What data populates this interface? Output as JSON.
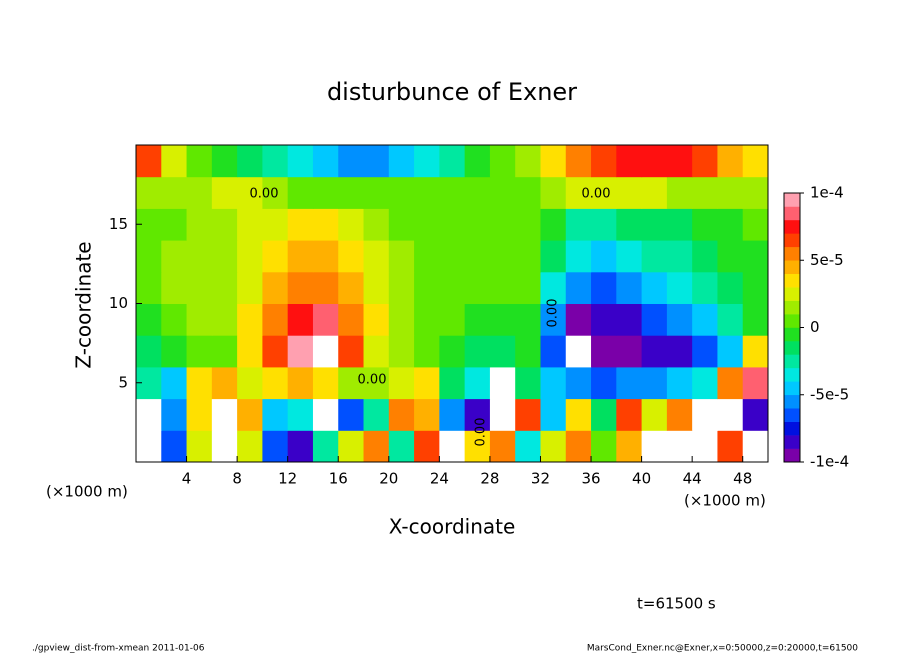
{
  "chart_data": {
    "type": "contour",
    "title": "disturbunce of Exner",
    "xlabel": "X-coordinate",
    "ylabel": "Z-coordinate",
    "xunit": "(×1000 m)",
    "time_label": "t=61500 s",
    "footer_left": "./gpview_dist-from-xmean   2011-01-06",
    "footer_right": "MarsCond_Exner.nc@Exner,x=0:50000,z=0:20000,t=61500",
    "contour_label": "0.00",
    "xlim": [
      0,
      50
    ],
    "ylim": [
      0,
      20
    ],
    "xticks": [
      4,
      8,
      12,
      16,
      20,
      24,
      28,
      32,
      36,
      40,
      44,
      48
    ],
    "yticks": [
      5,
      10,
      15
    ],
    "x": [
      1,
      3,
      5,
      7,
      9,
      11,
      13,
      15,
      17,
      19,
      21,
      23,
      25,
      27,
      29,
      31,
      33,
      35,
      37,
      39,
      41,
      43,
      45,
      47,
      49
    ],
    "y": [
      1,
      3,
      5,
      7,
      9,
      11,
      13,
      15,
      17,
      19
    ],
    "z": [
      [
        -0.00011,
        -7e-05,
        2e-05,
        0.00011,
        2e-05,
        -7e-05,
        -8e-05,
        -3e-05,
        2e-05,
        5e-05,
        -3e-05,
        6e-05,
        0.00011,
        3e-05,
        5e-05,
        -4e-05,
        2e-05,
        5e-05,
        0,
        4e-05,
        0.00011,
        0.00012,
        0.00012,
        6e-05,
        -0.00011
      ],
      [
        0.00011,
        -6e-05,
        3e-05,
        0.00011,
        4e-05,
        -5e-05,
        -4e-05,
        -0.00011,
        -7e-05,
        -3e-05,
        5e-05,
        4e-05,
        -6e-05,
        -8e-05,
        0.00012,
        6e-05,
        -5e-05,
        3e-05,
        -2e-05,
        6e-05,
        2e-05,
        5e-05,
        0.00011,
        0.00012,
        -8e-05
      ],
      [
        -3e-05,
        -5e-05,
        3e-05,
        4e-05,
        2e-05,
        3e-05,
        4e-05,
        3e-05,
        1e-05,
        1e-05,
        2e-05,
        3e-05,
        -2e-05,
        -4e-05,
        0.00011,
        -2e-05,
        -5e-05,
        -6e-05,
        -7e-05,
        -6e-05,
        -6e-05,
        -5e-05,
        -4e-05,
        5e-05,
        8e-05
      ],
      [
        -2e-05,
        -1e-05,
        0,
        0,
        3e-05,
        6e-05,
        9e-05,
        0.00011,
        6e-05,
        2e-05,
        1e-05,
        0,
        -1e-05,
        -2e-05,
        -2e-05,
        -1e-05,
        -7e-05,
        -0.00011,
        -9e-05,
        -9e-05,
        -8e-05,
        -8e-05,
        -7e-05,
        -5e-05,
        3e-05
      ],
      [
        -1e-05,
        0,
        1e-05,
        1e-05,
        3e-05,
        5e-05,
        7e-05,
        8e-05,
        5e-05,
        3e-05,
        1e-05,
        0,
        0,
        -1e-05,
        -1e-05,
        -1e-05,
        -6e-05,
        -9e-05,
        -8e-05,
        -8e-05,
        -7e-05,
        -6e-05,
        -5e-05,
        -3e-05,
        -1e-05
      ],
      [
        0,
        1e-05,
        1e-05,
        1e-05,
        2e-05,
        4e-05,
        5e-05,
        5e-05,
        4e-05,
        2e-05,
        1e-05,
        0,
        0,
        0,
        0,
        0,
        -4e-05,
        -6e-05,
        -7e-05,
        -6e-05,
        -5e-05,
        -4e-05,
        -3e-05,
        -2e-05,
        -1e-05
      ],
      [
        0,
        1e-05,
        1e-05,
        1e-05,
        2e-05,
        3e-05,
        4e-05,
        4e-05,
        3e-05,
        2e-05,
        1e-05,
        0,
        0,
        0,
        0,
        0,
        -2e-05,
        -4e-05,
        -5e-05,
        -4e-05,
        -3e-05,
        -3e-05,
        -2e-05,
        -1e-05,
        -1e-05
      ],
      [
        0,
        0,
        1e-05,
        1e-05,
        2e-05,
        2e-05,
        3e-05,
        3e-05,
        2e-05,
        1e-05,
        0,
        0,
        0,
        0,
        0,
        0,
        -1e-05,
        -3e-05,
        -3e-05,
        -2e-05,
        -2e-05,
        -2e-05,
        -1e-05,
        -1e-05,
        0
      ],
      [
        1e-05,
        1e-05,
        1e-05,
        2e-05,
        2e-05,
        1e-05,
        0,
        0,
        0,
        0,
        0,
        0,
        0,
        0,
        0,
        0,
        1e-05,
        2e-05,
        2e-05,
        2e-05,
        2e-05,
        1e-05,
        1e-05,
        1e-05,
        1e-05
      ],
      [
        6e-05,
        2e-05,
        0,
        -1e-05,
        -2e-05,
        -3e-05,
        -4e-05,
        -5e-05,
        -6e-05,
        -6e-05,
        -5e-05,
        -4e-05,
        -3e-05,
        -1e-05,
        0,
        1e-05,
        3e-05,
        5e-05,
        6e-05,
        7e-05,
        7e-05,
        7e-05,
        6e-05,
        4e-05,
        3e-05
      ]
    ],
    "clim": [
      -0.0001,
      0.0001
    ],
    "cticks": [
      {
        "value": 0.0001,
        "label": "1e-4"
      },
      {
        "value": 5e-05,
        "label": "5e-5"
      },
      0,
      {
        "value": -5e-05,
        "label": "-5e-5"
      },
      {
        "value": -0.0001,
        "label": "-1e-4"
      }
    ],
    "colormap": [
      "#7a00a8",
      "#3a00c8",
      "#0010e0",
      "#0050ff",
      "#0090ff",
      "#00c8ff",
      "#00e8e0",
      "#00e8a0",
      "#00e060",
      "#20e020",
      "#60e800",
      "#a0ec00",
      "#d8f000",
      "#ffe000",
      "#ffb000",
      "#ff8000",
      "#ff4000",
      "#ff1010",
      "#ff6070",
      "#ffa0b0"
    ]
  }
}
